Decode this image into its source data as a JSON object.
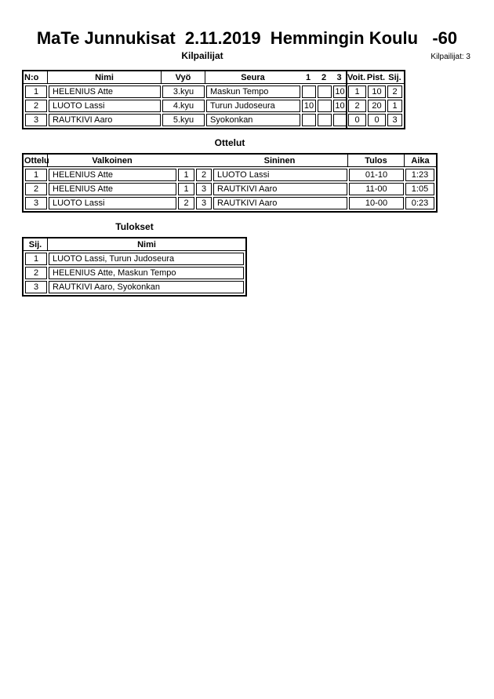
{
  "header": {
    "title": "MaTe Junnukisat  2.11.2019  Hemmingin Koulu   -60",
    "competitors_count": "Kilpailijat: 3"
  },
  "colors": {
    "text": "#000000",
    "border": "#000000",
    "background": "#ffffff"
  },
  "competitors": {
    "title": "Kilpailijat",
    "headers": {
      "no": "N:o",
      "name": "Nimi",
      "belt": "Vyö",
      "club": "Seura",
      "match1": "1",
      "match2": "2",
      "match3": "3",
      "wins": "Voit.",
      "points": "Pist.",
      "place": "Sij."
    },
    "rows": [
      {
        "no": "1",
        "name": "HELENIUS Atte",
        "belt": "3.kyu",
        "club": "Maskun Tempo",
        "match1": "",
        "match2": "",
        "match3": "10",
        "wins": "1",
        "points": "10",
        "place": "2"
      },
      {
        "no": "2",
        "name": "LUOTO Lassi",
        "belt": "4.kyu",
        "club": "Turun Judoseura",
        "match1": "10",
        "match2": "",
        "match3": "10",
        "wins": "2",
        "points": "20",
        "place": "1"
      },
      {
        "no": "3",
        "name": "RAUTKIVI Aaro",
        "belt": "5.kyu",
        "club": "Syokonkan",
        "match1": "",
        "match2": "",
        "match3": "",
        "wins": "0",
        "points": "0",
        "place": "3"
      }
    ]
  },
  "matches": {
    "title": "Ottelut",
    "headers": {
      "match": "Ottelu",
      "white": "Valkoinen",
      "blue": "Sininen",
      "result": "Tulos",
      "time": "Aika"
    },
    "rows": [
      {
        "no": "1",
        "white": "HELENIUS Atte",
        "white_no": "1",
        "blue_no": "2",
        "blue": "LUOTO Lassi",
        "result": "01-10",
        "time": "1:23"
      },
      {
        "no": "2",
        "white": "HELENIUS Atte",
        "white_no": "1",
        "blue_no": "3",
        "blue": "RAUTKIVI Aaro",
        "result": "11-00",
        "time": "1:05"
      },
      {
        "no": "3",
        "white": "LUOTO Lassi",
        "white_no": "2",
        "blue_no": "3",
        "blue": "RAUTKIVI Aaro",
        "result": "10-00",
        "time": "0:23"
      }
    ]
  },
  "results": {
    "title": "Tulokset",
    "headers": {
      "place": "Sij.",
      "name": "Nimi"
    },
    "rows": [
      {
        "place": "1",
        "name": "LUOTO Lassi, Turun Judoseura"
      },
      {
        "place": "2",
        "name": "HELENIUS Atte, Maskun Tempo"
      },
      {
        "place": "3",
        "name": "RAUTKIVI Aaro, Syokonkan"
      }
    ]
  }
}
